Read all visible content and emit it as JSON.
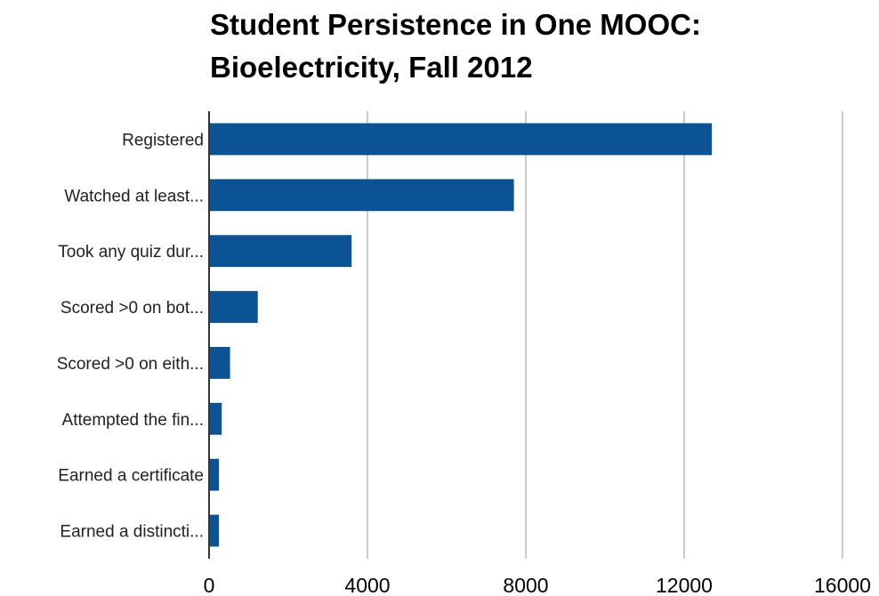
{
  "chart_data": {
    "type": "bar",
    "orientation": "horizontal",
    "title_lines": [
      "Student Persistence in One MOOC:",
      "Bioelectricity, Fall 2012"
    ],
    "categories": [
      "Registered",
      "Watched at least...",
      "Took any quiz dur...",
      "Scored >0 on bot...",
      "Scored >0 on eith...",
      "Attempted the fin...",
      "Earned a certificate",
      "Earned a distincti..."
    ],
    "values": [
      12700,
      7700,
      3600,
      1230,
      530,
      320,
      250,
      250
    ],
    "xlim": [
      0,
      16000
    ],
    "x_ticks": [
      0,
      4000,
      8000,
      12000,
      16000
    ],
    "grid": true,
    "legend": "none",
    "bar_color": "#0b5394",
    "grid_color": "#cccccc",
    "axis_color": "#333333"
  }
}
